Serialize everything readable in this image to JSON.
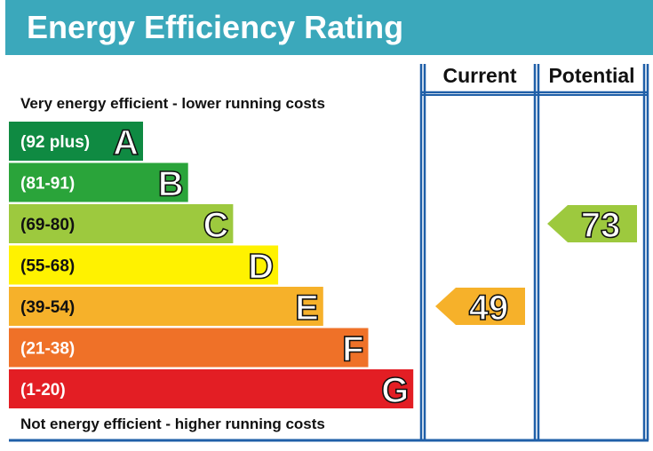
{
  "header": {
    "title": "Energy Efficiency Rating",
    "bg_color": "#3ba8bb"
  },
  "chart_data": {
    "type": "bar",
    "title": "Energy Efficiency Rating",
    "top_label": "Very energy efficient - lower running costs",
    "bottom_label": "Not energy efficient - higher running costs",
    "column_headers": [
      "Current",
      "Potential"
    ],
    "bands": [
      {
        "range": "(92 plus)",
        "letter": "A",
        "color": "#0f8a42"
      },
      {
        "range": "(81-91)",
        "letter": "B",
        "color": "#2aa43a"
      },
      {
        "range": "(69-80)",
        "letter": "C",
        "color": "#9dc93e"
      },
      {
        "range": "(55-68)",
        "letter": "D",
        "color": "#fff200"
      },
      {
        "range": "(39-54)",
        "letter": "E",
        "color": "#f6b12a"
      },
      {
        "range": "(21-38)",
        "letter": "F",
        "color": "#ef7128"
      },
      {
        "range": "(1-20)",
        "letter": "G",
        "color": "#e31e24"
      }
    ],
    "current": {
      "value": 49,
      "band": "E",
      "color": "#f6b12a"
    },
    "potential": {
      "value": 73,
      "band": "C",
      "color": "#9dc93e"
    },
    "frame_color": "#1f5fa8"
  }
}
